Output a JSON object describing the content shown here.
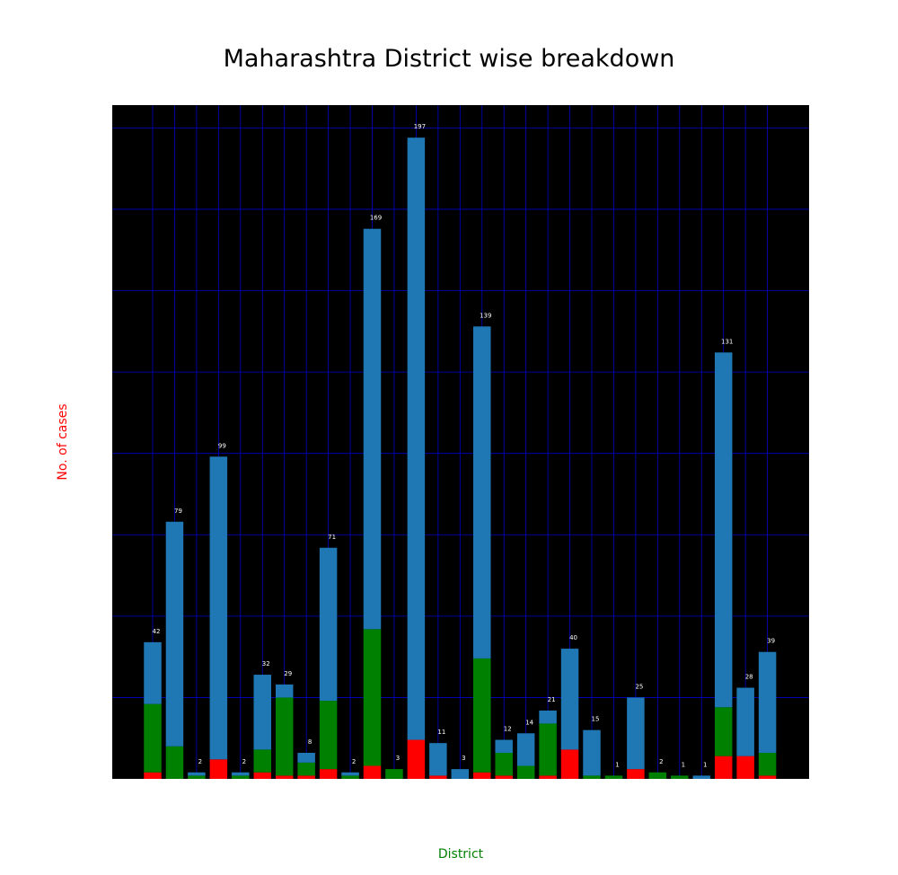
{
  "chart_data": {
    "type": "bar",
    "stacked": true,
    "title": "Maharashtra District wise breakdown",
    "xlabel": "District",
    "ylabel": "No. of cases",
    "ylim": [
      0,
      207
    ],
    "grid": true,
    "legend": "none",
    "colors": {
      "background": "#000000",
      "grid": "#0000c8",
      "bar_label": "#ffffff",
      "xlabel": "#008000",
      "ylabel": "#ff0000"
    },
    "series": [
      {
        "color": "#ff0000",
        "values": [
          2,
          0,
          0,
          6,
          0,
          2,
          1,
          1,
          3,
          0,
          4,
          0,
          12,
          1,
          0,
          2,
          1,
          0,
          1,
          9,
          0,
          0,
          3,
          0,
          0,
          0,
          7,
          7,
          1
        ]
      },
      {
        "color": "#008000",
        "values": [
          21,
          10,
          1,
          0,
          1,
          7,
          24,
          4,
          21,
          1,
          42,
          3,
          0,
          0,
          0,
          35,
          7,
          4,
          16,
          0,
          1,
          1,
          0,
          2,
          1,
          0,
          15,
          0,
          7
        ]
      },
      {
        "color": "#1f77b4",
        "values": [
          19,
          69,
          1,
          93,
          1,
          23,
          4,
          3,
          47,
          1,
          123,
          0,
          185,
          10,
          3,
          102,
          4,
          10,
          4,
          31,
          14,
          0,
          22,
          0,
          0,
          1,
          109,
          21,
          31
        ]
      }
    ],
    "bar_labels": [
      "42",
      "79",
      "2",
      "99",
      "2",
      "32",
      "29",
      "8",
      "71",
      "2",
      "169",
      "3",
      "197",
      "11",
      "3",
      "139",
      "12",
      "14",
      "21",
      "40",
      "15",
      "1",
      "25",
      "2",
      "1",
      "1",
      "131",
      "28",
      "39"
    ]
  }
}
